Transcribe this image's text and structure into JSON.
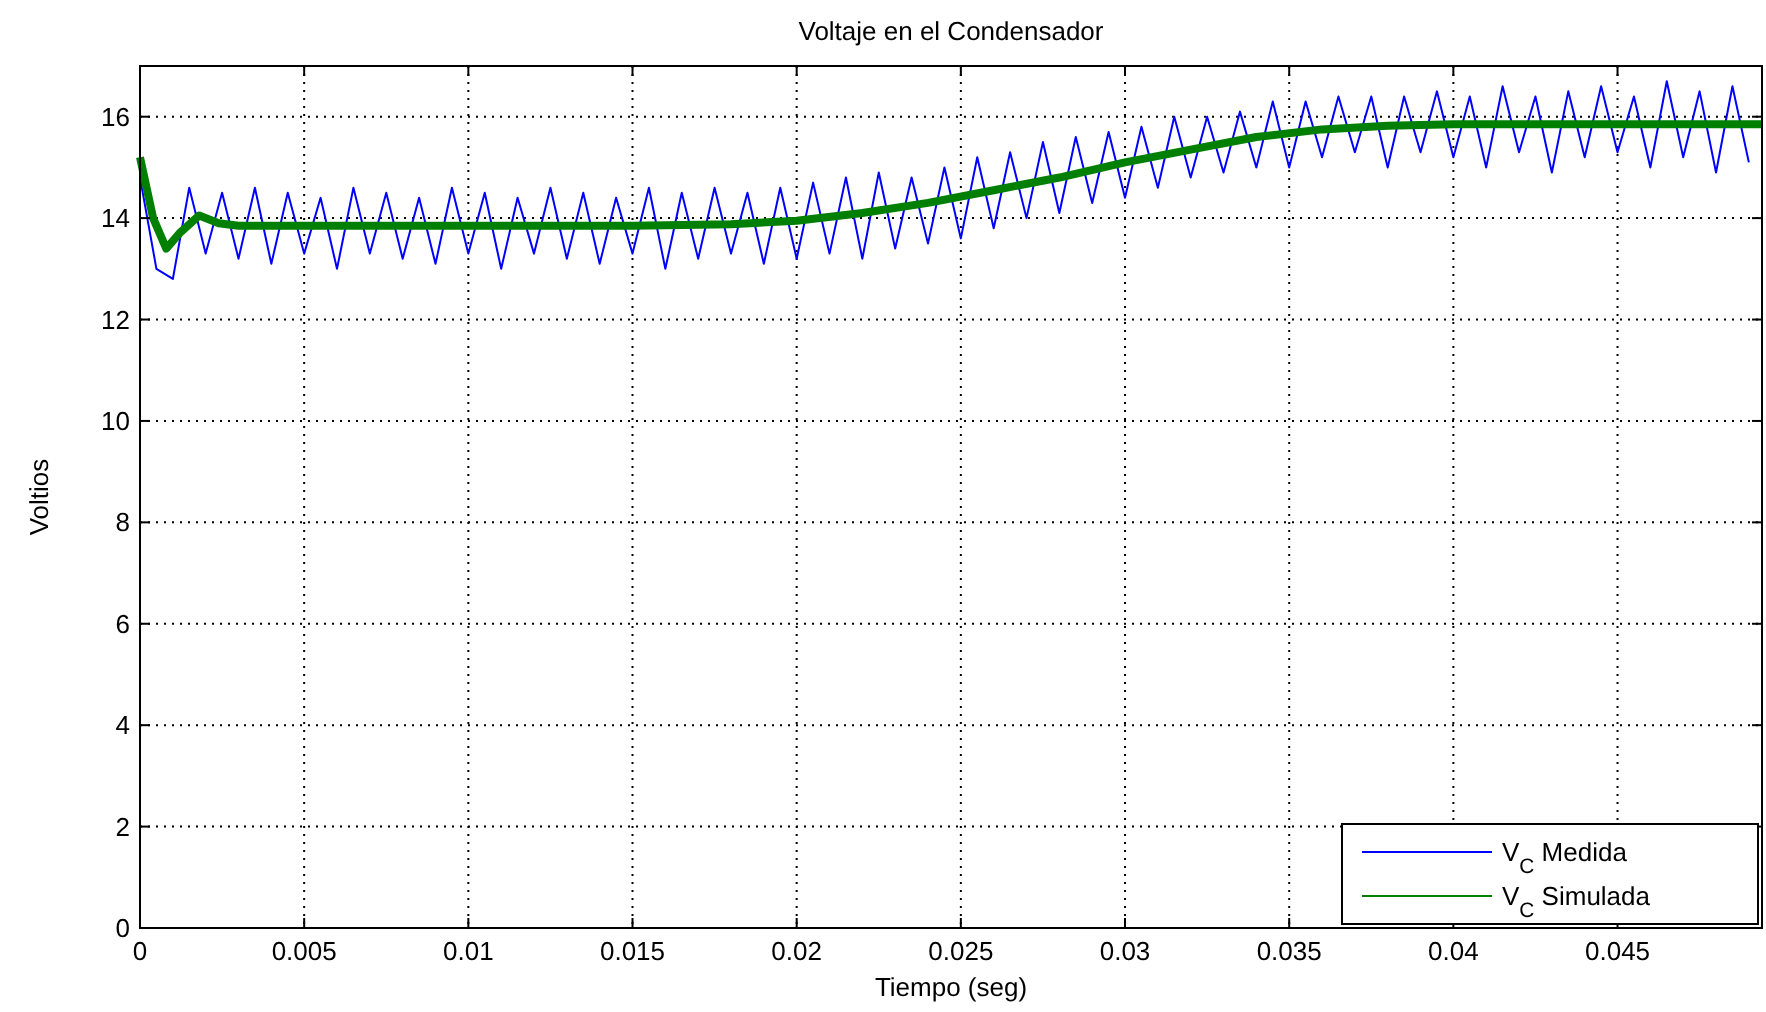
{
  "chart_data": {
    "type": "line",
    "title": "Voltaje en el Condensador",
    "xlabel": "Tiempo (seg)",
    "ylabel": "Voltios",
    "xlim": [
      0,
      0.0494
    ],
    "ylim": [
      0,
      17
    ],
    "xticks": [
      0,
      0.005,
      0.01,
      0.015,
      0.02,
      0.025,
      0.03,
      0.035,
      0.04,
      0.045
    ],
    "yticks": [
      0,
      2,
      4,
      6,
      8,
      10,
      12,
      14,
      16
    ],
    "grid": true,
    "legend": "bottom right",
    "line_style": "solid",
    "marker": "none",
    "series": [
      {
        "name": "V$_{C}$ Medida",
        "color": "#0000ff",
        "x": [
          0,
          0.0005,
          0.001,
          0.0015,
          0.002,
          0.0025,
          0.003,
          0.0035,
          0.004,
          0.0045,
          0.005,
          0.0055,
          0.006,
          0.0065,
          0.007,
          0.0075,
          0.008,
          0.0085,
          0.009,
          0.0095,
          0.01,
          0.0105,
          0.011,
          0.0115,
          0.012,
          0.0125,
          0.013,
          0.0135,
          0.014,
          0.0145,
          0.015,
          0.0155,
          0.016,
          0.0165,
          0.017,
          0.0175,
          0.018,
          0.0185,
          0.019,
          0.0195,
          0.02,
          0.0205,
          0.021,
          0.0215,
          0.022,
          0.0225,
          0.023,
          0.0235,
          0.024,
          0.0245,
          0.025,
          0.0255,
          0.026,
          0.0265,
          0.027,
          0.0275,
          0.028,
          0.0285,
          0.029,
          0.0295,
          0.03,
          0.0305,
          0.031,
          0.0315,
          0.032,
          0.0325,
          0.033,
          0.0335,
          0.034,
          0.0345,
          0.035,
          0.0355,
          0.036,
          0.0365,
          0.037,
          0.0375,
          0.038,
          0.0385,
          0.039,
          0.0395,
          0.04,
          0.0405,
          0.041,
          0.0415,
          0.042,
          0.0425,
          0.043,
          0.0435,
          0.044,
          0.0445,
          0.045,
          0.0455,
          0.046,
          0.0465,
          0.047,
          0.0475,
          0.048,
          0.0485,
          0.049
        ],
        "values": [
          14.8,
          13.0,
          12.8,
          14.6,
          13.3,
          14.5,
          13.2,
          14.6,
          13.1,
          14.5,
          13.3,
          14.4,
          13.0,
          14.6,
          13.3,
          14.5,
          13.2,
          14.4,
          13.1,
          14.6,
          13.3,
          14.5,
          13.0,
          14.4,
          13.3,
          14.6,
          13.2,
          14.5,
          13.1,
          14.4,
          13.3,
          14.6,
          13.0,
          14.5,
          13.2,
          14.6,
          13.3,
          14.5,
          13.1,
          14.6,
          13.2,
          14.7,
          13.3,
          14.8,
          13.2,
          14.9,
          13.4,
          14.8,
          13.5,
          15.0,
          13.6,
          15.2,
          13.8,
          15.3,
          14.0,
          15.5,
          14.1,
          15.6,
          14.3,
          15.7,
          14.4,
          15.8,
          14.6,
          16.0,
          14.8,
          16.0,
          14.9,
          16.1,
          15.0,
          16.3,
          15.0,
          16.3,
          15.2,
          16.4,
          15.3,
          16.4,
          15.0,
          16.4,
          15.3,
          16.5,
          15.2,
          16.4,
          15.0,
          16.6,
          15.3,
          16.4,
          14.9,
          16.5,
          15.2,
          16.6,
          15.3,
          16.4,
          15.0,
          16.7,
          15.2,
          16.5,
          14.9,
          16.6,
          15.1
        ]
      },
      {
        "name": "V$_{C}$ Simulada",
        "color": "#007f00",
        "x": [
          0,
          0.0004,
          0.0008,
          0.0012,
          0.0018,
          0.0024,
          0.003,
          0.005,
          0.01,
          0.015,
          0.018,
          0.02,
          0.022,
          0.024,
          0.026,
          0.028,
          0.03,
          0.032,
          0.034,
          0.036,
          0.038,
          0.04,
          0.045,
          0.0494
        ],
        "values": [
          15.2,
          14.0,
          13.4,
          13.7,
          14.05,
          13.9,
          13.85,
          13.85,
          13.85,
          13.85,
          13.88,
          13.95,
          14.1,
          14.3,
          14.55,
          14.8,
          15.1,
          15.35,
          15.6,
          15.75,
          15.82,
          15.85,
          15.85,
          15.85
        ]
      }
    ]
  }
}
